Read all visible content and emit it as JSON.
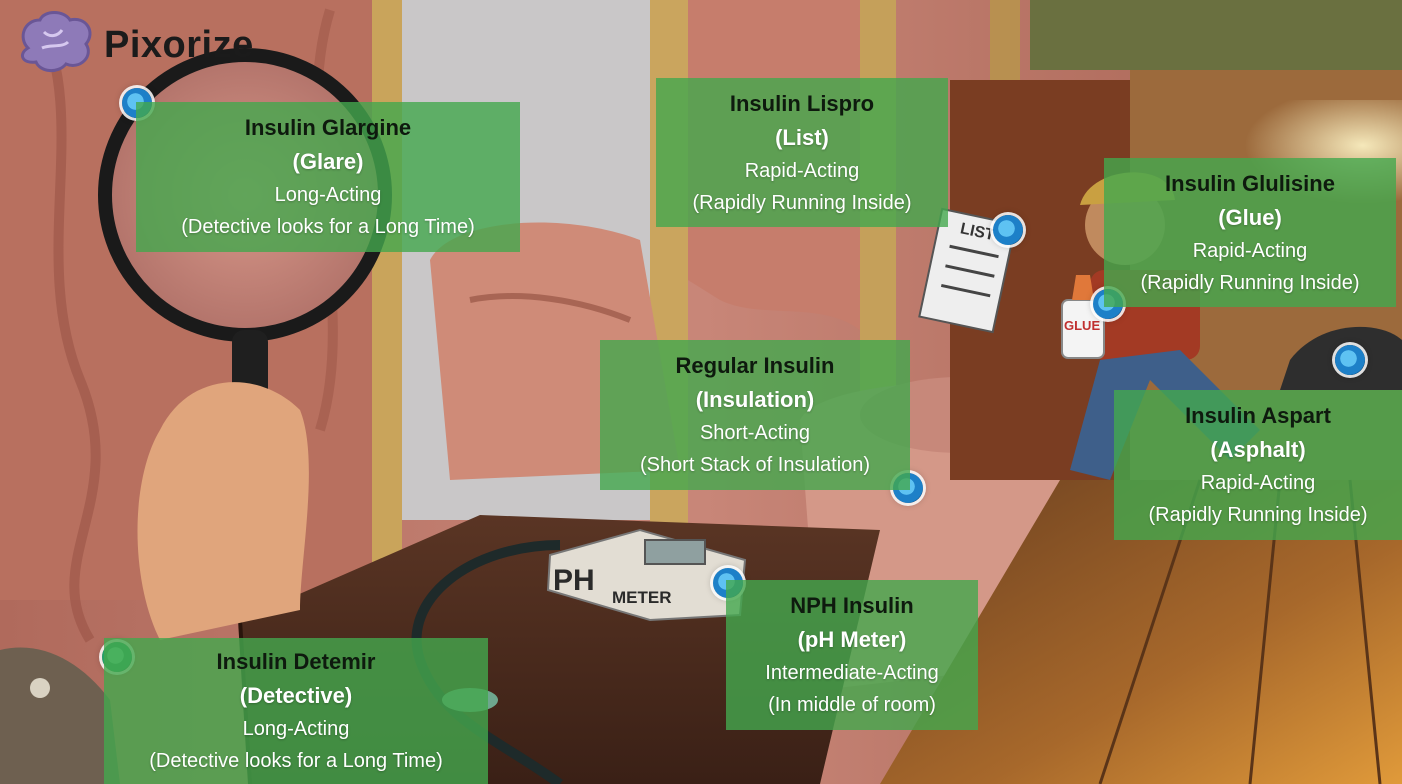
{
  "brand": {
    "name": "Pixorize",
    "icon": "brain-icon"
  },
  "cards": [
    {
      "id": "glargine",
      "drug": "Insulin Glargine",
      "mnemonic": "(Glare)",
      "class": "Long-Acting",
      "note": "(Detective looks for a Long Time)"
    },
    {
      "id": "lispro",
      "drug": "Insulin Lispro",
      "mnemonic": "(List)",
      "class": "Rapid-Acting",
      "note": "(Rapidly Running Inside)"
    },
    {
      "id": "glulisine",
      "drug": "Insulin Glulisine",
      "mnemonic": "(Glue)",
      "class": "Rapid-Acting",
      "note": "(Rapidly Running Inside)"
    },
    {
      "id": "regular",
      "drug": "Regular Insulin",
      "mnemonic": "(Insulation)",
      "class": "Short-Acting",
      "note": "(Short Stack of Insulation)"
    },
    {
      "id": "aspart",
      "drug": "Insulin Aspart",
      "mnemonic": "(Asphalt)",
      "class": "Rapid-Acting",
      "note": "(Rapidly Running Inside)"
    },
    {
      "id": "nph",
      "drug": "NPH Insulin",
      "mnemonic": "(pH Meter)",
      "class": "Intermediate-Acting",
      "note": "(In middle of room)"
    },
    {
      "id": "detemir",
      "drug": "Insulin Detemir",
      "mnemonic": "(Detective)",
      "class": "Long-Acting",
      "note": "(Detective looks for a Long Time)"
    }
  ],
  "scene_labels": {
    "list_paper": "LIST",
    "glue_bottle": "GLUE",
    "ph_meter_big": "PH",
    "ph_meter_small": "METER"
  },
  "colors": {
    "card_bg": "#44a84e",
    "hotspot_blue": "#1d80c8",
    "hotspot_teal": "#23a06a"
  }
}
